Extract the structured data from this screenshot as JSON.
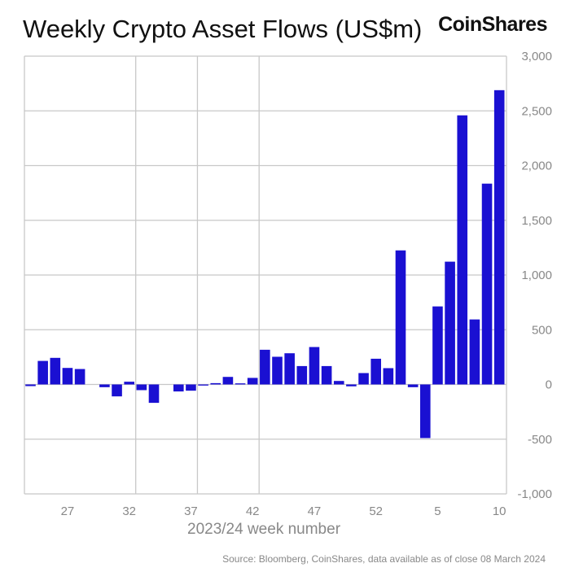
{
  "chart_data": {
    "type": "bar",
    "title": "Weekly Crypto Asset Flows (US$m)",
    "xlabel": "2023/24 week number",
    "ylabel": "",
    "source": "Source: Bloomberg, CoinShares, data available as of close 08 March 2024",
    "brand": "CoinShares",
    "ylim": [
      -1000,
      3000
    ],
    "yticks": [
      "3,000",
      "2,500",
      "2,000",
      "1,500",
      "1,000",
      "500",
      "0",
      "-500",
      "-1,000"
    ],
    "ytick_values": [
      3000,
      2500,
      2000,
      1500,
      1000,
      500,
      0,
      -500,
      -1000
    ],
    "xtick_labels": [
      "27",
      "32",
      "37",
      "42",
      "47",
      "52",
      "5",
      "10"
    ],
    "xtick_categories": [
      "27",
      "32",
      "37",
      "42",
      "47",
      "52",
      "5",
      "10"
    ],
    "grid": true,
    "bar_color": "#1a10d2",
    "categories": [
      "24",
      "25",
      "26",
      "27",
      "28",
      "29",
      "30",
      "31",
      "32",
      "33",
      "34",
      "35",
      "36",
      "37",
      "38",
      "39",
      "40",
      "41",
      "42",
      "43",
      "44",
      "45",
      "46",
      "47",
      "48",
      "49",
      "50",
      "51",
      "52",
      "1",
      "2",
      "3",
      "4",
      "5",
      "6",
      "7",
      "8",
      "9",
      "10"
    ],
    "values": [
      -15,
      215,
      243,
      151,
      141,
      0,
      -25,
      -109,
      25,
      -52,
      -168,
      0,
      -64,
      -57,
      -10,
      12,
      69,
      10,
      60,
      317,
      253,
      285,
      168,
      342,
      168,
      32,
      -17,
      104,
      235,
      149,
      1225,
      -25,
      -490,
      713,
      1122,
      2459,
      594,
      1835,
      2689
    ]
  }
}
